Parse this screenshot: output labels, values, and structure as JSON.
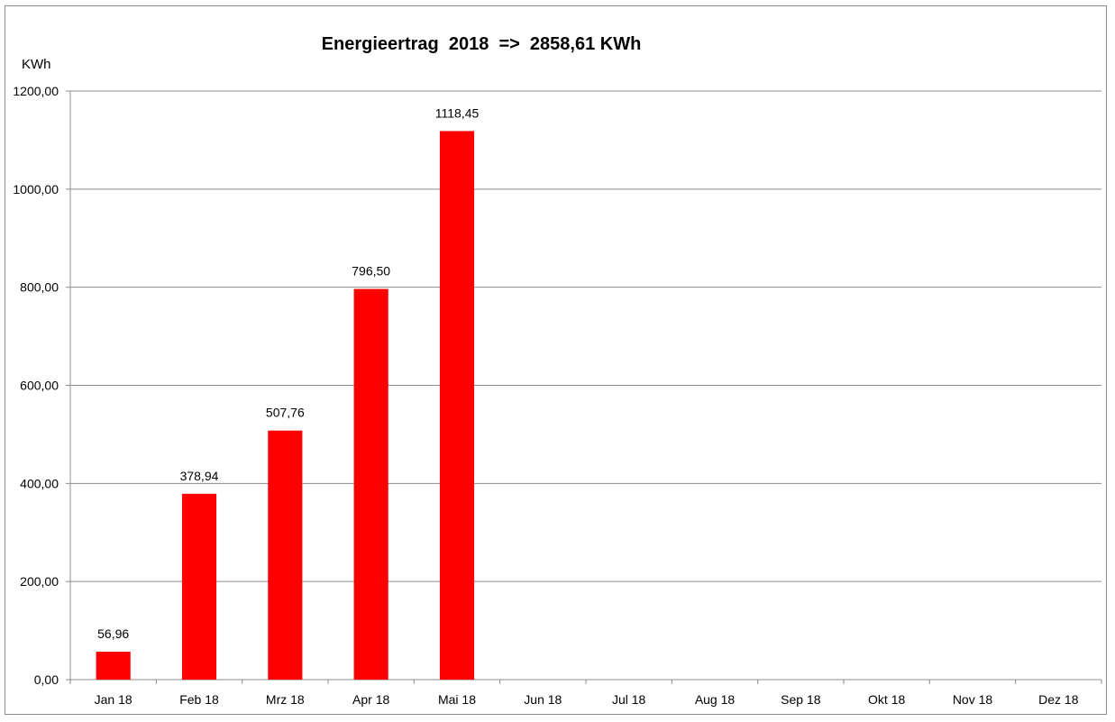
{
  "chart_data": {
    "type": "bar",
    "title": "Energieertrag  2018  =>  2858,61 KWh",
    "ylabel": "KWh",
    "xlabel": "",
    "categories": [
      "Jan 18",
      "Feb 18",
      "Mrz 18",
      "Apr 18",
      "Mai 18",
      "Jun 18",
      "Jul 18",
      "Aug 18",
      "Sep 18",
      "Okt 18",
      "Nov 18",
      "Dez 18"
    ],
    "values": [
      56.96,
      378.94,
      507.76,
      796.5,
      1118.45,
      null,
      null,
      null,
      null,
      null,
      null,
      null
    ],
    "data_labels": [
      "56,96",
      "378,94",
      "507,76",
      "796,50",
      "1118,45",
      "",
      "",
      "",
      "",
      "",
      "",
      ""
    ],
    "y_ticks": [
      "0,00",
      "200,00",
      "400,00",
      "600,00",
      "800,00",
      "1000,00",
      "1200,00"
    ],
    "ylim": [
      0,
      1200
    ],
    "grid": true,
    "legend": "none",
    "colors": {
      "bar": "#ff0000",
      "grid": "#8c8c8c",
      "axis": "#8c8c8c",
      "text": "#000000"
    }
  }
}
